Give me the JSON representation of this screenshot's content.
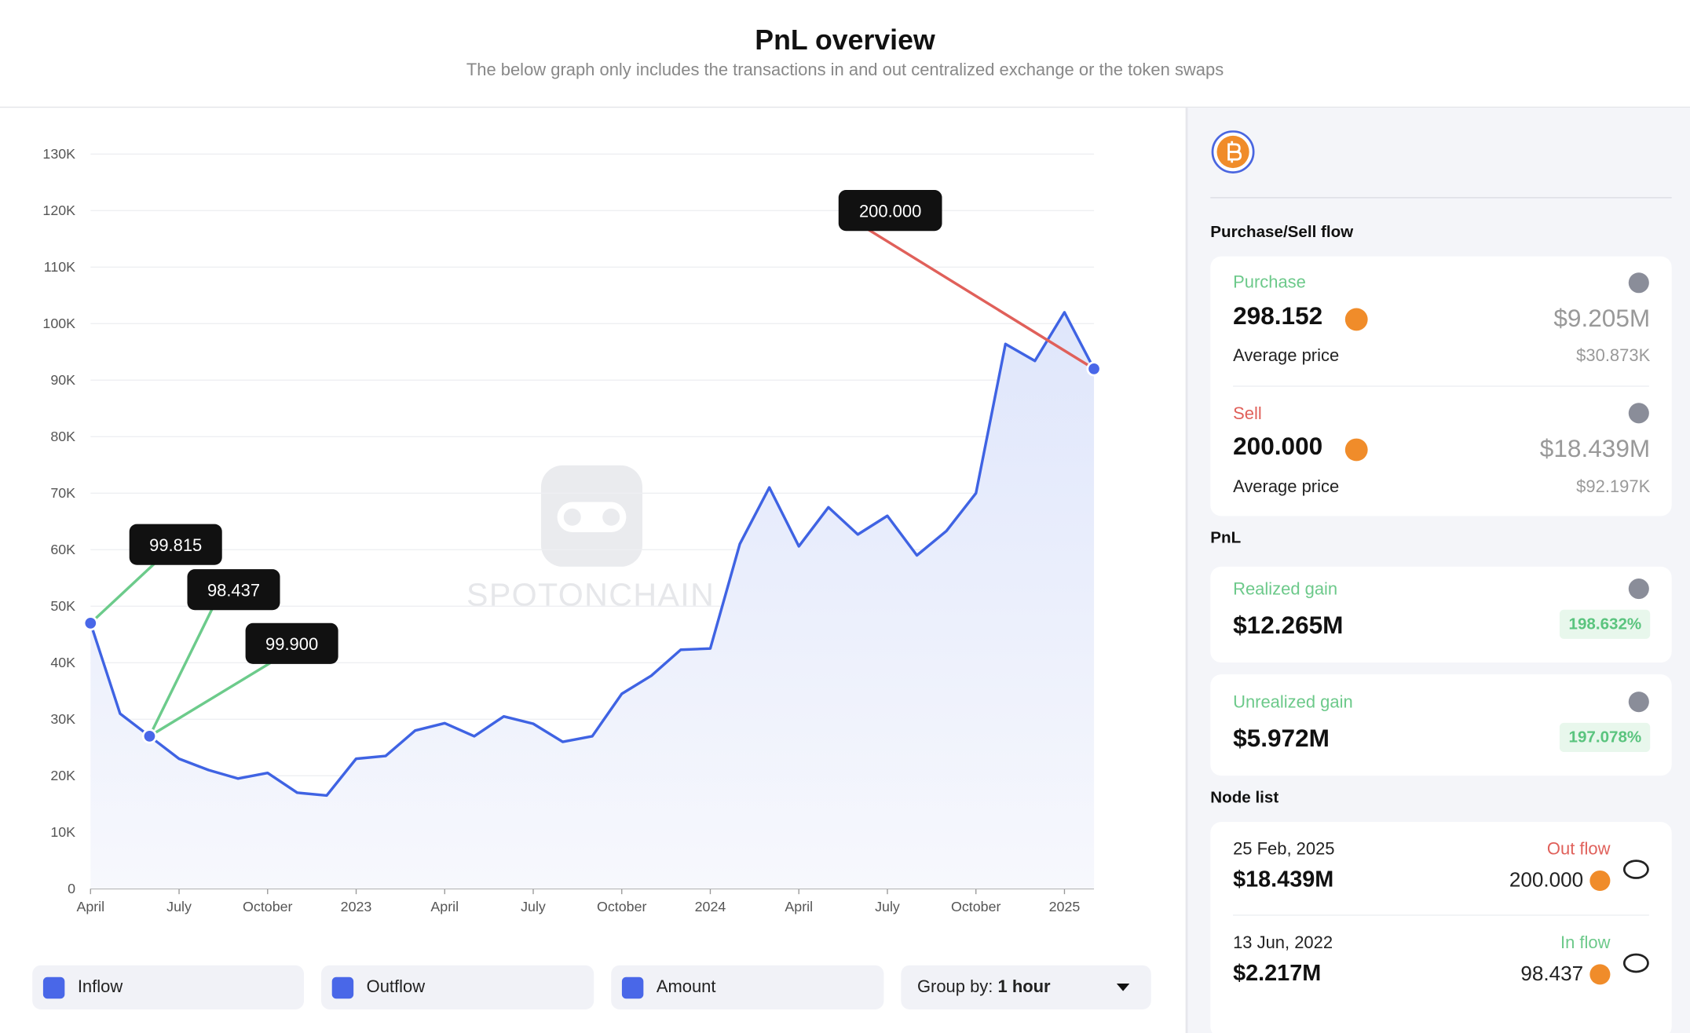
{
  "header": {
    "title": "PnL overview",
    "subtitle": "The below graph only includes the transactions in and out centralized exchange or the token swaps"
  },
  "watermark": "SPOTONCHAIN",
  "chart_data": {
    "type": "line",
    "color": "#3f63e3",
    "x": [
      "2022-04",
      "2022-05",
      "2022-06",
      "2022-07",
      "2022-08",
      "2022-09",
      "2022-10",
      "2022-11",
      "2022-12",
      "2023-01",
      "2023-02",
      "2023-03",
      "2023-04",
      "2023-05",
      "2023-06",
      "2023-07",
      "2023-08",
      "2023-09",
      "2023-10",
      "2023-11",
      "2023-12",
      "2024-01",
      "2024-02",
      "2024-03",
      "2024-04",
      "2024-05",
      "2024-06",
      "2024-07",
      "2024-08",
      "2024-09",
      "2024-10",
      "2024-11",
      "2024-12",
      "2025-01",
      "2025-02"
    ],
    "values": [
      47000,
      31000,
      27000,
      23000,
      21000,
      19500,
      20500,
      17000,
      16500,
      23000,
      23500,
      28000,
      29300,
      27000,
      30500,
      29200,
      26000,
      27000,
      34500,
      37700,
      42300,
      42500,
      61000,
      71000,
      60600,
      67500,
      62700,
      66000,
      59000,
      63300,
      70000,
      96400,
      93400,
      102000,
      92000
    ],
    "xlim": [
      "2022-04",
      "2025-02"
    ],
    "xticks": [
      {
        "value": "2022-04",
        "label": "April"
      },
      {
        "value": "2022-07",
        "label": "July"
      },
      {
        "value": "2022-10",
        "label": "October"
      },
      {
        "value": "2023-01",
        "label": "2023"
      },
      {
        "value": "2023-04",
        "label": "April"
      },
      {
        "value": "2023-07",
        "label": "July"
      },
      {
        "value": "2023-10",
        "label": "October"
      },
      {
        "value": "2024-01",
        "label": "2024"
      },
      {
        "value": "2024-04",
        "label": "April"
      },
      {
        "value": "2024-07",
        "label": "July"
      },
      {
        "value": "2024-10",
        "label": "October"
      },
      {
        "value": "2025-01",
        "label": "2025"
      }
    ],
    "ylim": [
      0,
      130000
    ],
    "yticks": [
      0,
      {
        "value": 10000,
        "label": "10K"
      },
      {
        "value": 20000,
        "label": "20K"
      },
      {
        "value": 30000,
        "label": "30K"
      },
      {
        "value": 40000,
        "label": "40K"
      },
      {
        "value": 50000,
        "label": "50K"
      },
      {
        "value": 60000,
        "label": "60K"
      },
      {
        "value": 70000,
        "label": "70K"
      },
      {
        "value": 80000,
        "label": "80K"
      },
      {
        "value": 90000,
        "label": "90K"
      },
      {
        "value": 100000,
        "label": "100K"
      },
      {
        "value": 110000,
        "label": "110K"
      },
      {
        "value": 120000,
        "label": "120K"
      },
      {
        "value": 130000,
        "label": "130K"
      }
    ],
    "grid": true,
    "annotations": [
      {
        "text": "99.815",
        "x": "2022-04",
        "y": 47000,
        "color": "#6ccb8b"
      },
      {
        "text": "98.437",
        "x": "2022-06",
        "y": 27000,
        "color": "#6ccb8b"
      },
      {
        "text": "99.900",
        "x": "2022-06",
        "y": 27000,
        "color": "#6ccb8b"
      },
      {
        "text": "200.000",
        "x": "2025-02",
        "y": 92000,
        "color": "#e0605a"
      }
    ]
  },
  "controls": {
    "checkboxes": [
      "Inflow",
      "Outflow",
      "Amount"
    ],
    "group_by_label": "Group by:",
    "group_by_value": "1 hour"
  },
  "panel": {
    "flow_title": "Purchase/Sell flow",
    "purchase": {
      "label": "Purchase",
      "amount": "298.152",
      "usd": "$9.205M",
      "avg_label": "Average price",
      "avg": "$30.873K"
    },
    "sell": {
      "label": "Sell",
      "amount": "200.000",
      "usd": "$18.439M",
      "avg_label": "Average price",
      "avg": "$92.197K"
    },
    "pnl_title": "PnL",
    "realized": {
      "label": "Realized gain",
      "value": "$12.265M",
      "percent": "198.632%"
    },
    "unrealized": {
      "label": "Unrealized gain",
      "value": "$5.972M",
      "percent": "197.078%"
    },
    "node_title": "Node list",
    "nodes": [
      {
        "date": "25 Feb, 2025",
        "flow": "Out flow",
        "usd": "$18.439M",
        "amount": "200.000"
      },
      {
        "date": "13 Jun, 2022",
        "flow": "In flow",
        "usd": "$2.217M",
        "amount": "98.437"
      }
    ]
  }
}
